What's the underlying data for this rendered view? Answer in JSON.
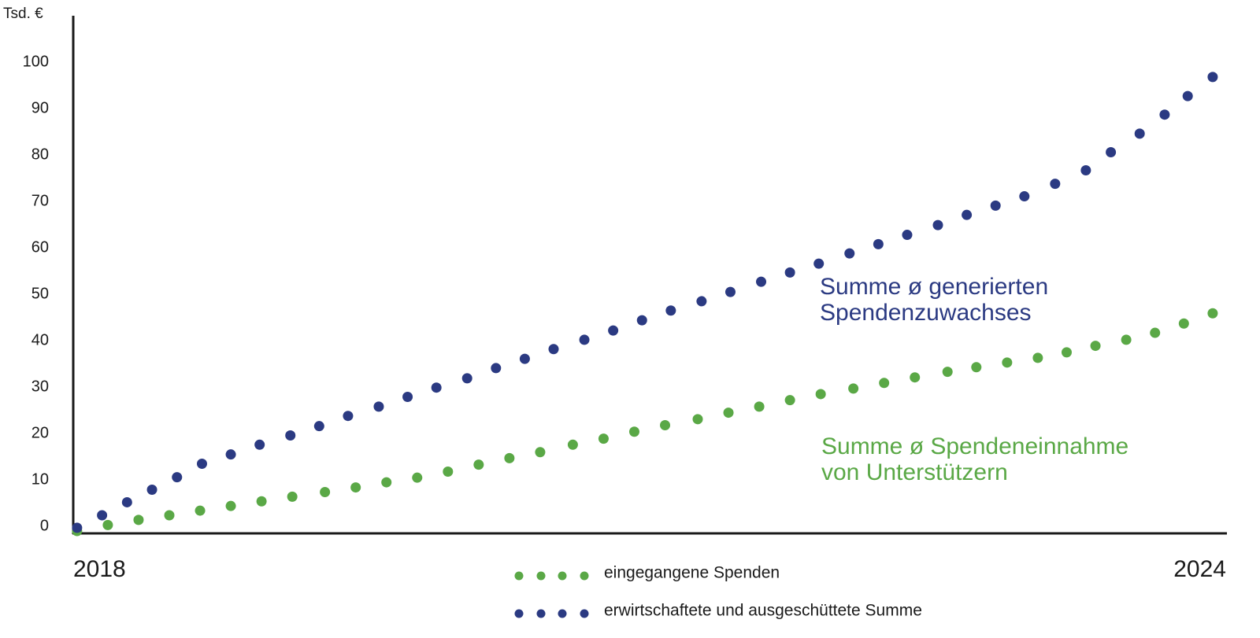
{
  "chart_data": {
    "type": "scatter",
    "y_unit": "Tsd. €",
    "xlim": [
      2018,
      2024
    ],
    "xticks": [
      2018,
      2024
    ],
    "ylim": [
      -1.5,
      110
    ],
    "yticks": [
      0,
      10,
      20,
      30,
      40,
      50,
      60,
      70,
      80,
      90,
      100
    ],
    "grid": false,
    "series": [
      {
        "name": "eingegangene Spenden",
        "color": "#5aa846",
        "x": [
          2018.02,
          2018.18,
          2018.34,
          2018.5,
          2018.66,
          2018.82,
          2018.98,
          2019.14,
          2019.31,
          2019.47,
          2019.63,
          2019.79,
          2019.95,
          2020.11,
          2020.27,
          2020.43,
          2020.6,
          2020.76,
          2020.92,
          2021.08,
          2021.25,
          2021.41,
          2021.57,
          2021.73,
          2021.89,
          2022.06,
          2022.22,
          2022.38,
          2022.55,
          2022.7,
          2022.86,
          2023.02,
          2023.17,
          2023.32,
          2023.48,
          2023.63,
          2023.78,
          2023.93
        ],
        "values": [
          -1.0,
          0.3,
          1.4,
          2.4,
          3.4,
          4.4,
          5.4,
          6.4,
          7.4,
          8.4,
          9.5,
          10.5,
          11.8,
          13.3,
          14.7,
          16.0,
          17.6,
          18.9,
          20.4,
          21.8,
          23.1,
          24.5,
          25.8,
          27.2,
          28.5,
          29.7,
          30.9,
          32.1,
          33.3,
          34.3,
          35.3,
          36.3,
          37.5,
          38.9,
          40.2,
          41.7,
          43.7,
          45.9
        ]
      },
      {
        "name": "erwirtschaftete und ausgeschüttete Summe",
        "color": "#2b3a82",
        "x": [
          2018.02,
          2018.15,
          2018.28,
          2018.41,
          2018.54,
          2018.67,
          2018.82,
          2018.97,
          2019.13,
          2019.28,
          2019.43,
          2019.59,
          2019.74,
          2019.89,
          2020.05,
          2020.2,
          2020.35,
          2020.5,
          2020.66,
          2020.81,
          2020.96,
          2021.11,
          2021.27,
          2021.42,
          2021.58,
          2021.73,
          2021.88,
          2022.04,
          2022.19,
          2022.34,
          2022.5,
          2022.65,
          2022.8,
          2022.95,
          2023.11,
          2023.27,
          2023.4,
          2023.55,
          2023.68,
          2023.8,
          2023.93
        ],
        "values": [
          -0.3,
          2.4,
          5.2,
          7.9,
          10.6,
          13.5,
          15.5,
          17.6,
          19.6,
          21.6,
          23.8,
          25.8,
          27.9,
          29.9,
          31.9,
          34.1,
          36.1,
          38.2,
          40.2,
          42.2,
          44.4,
          46.5,
          48.5,
          50.5,
          52.7,
          54.7,
          56.6,
          58.8,
          60.8,
          62.8,
          64.9,
          67.1,
          69.1,
          71.1,
          73.8,
          76.7,
          80.6,
          84.6,
          88.7,
          92.7,
          96.8
        ]
      }
    ],
    "annotations": [
      {
        "lines": [
          "Summe ø generierten",
          "Spendenzuwachses"
        ],
        "color": "#2b3a82"
      },
      {
        "lines": [
          "Summe ø Spendeneinnahme",
          "von Unterstützern"
        ],
        "color": "#5aa846"
      }
    ]
  }
}
